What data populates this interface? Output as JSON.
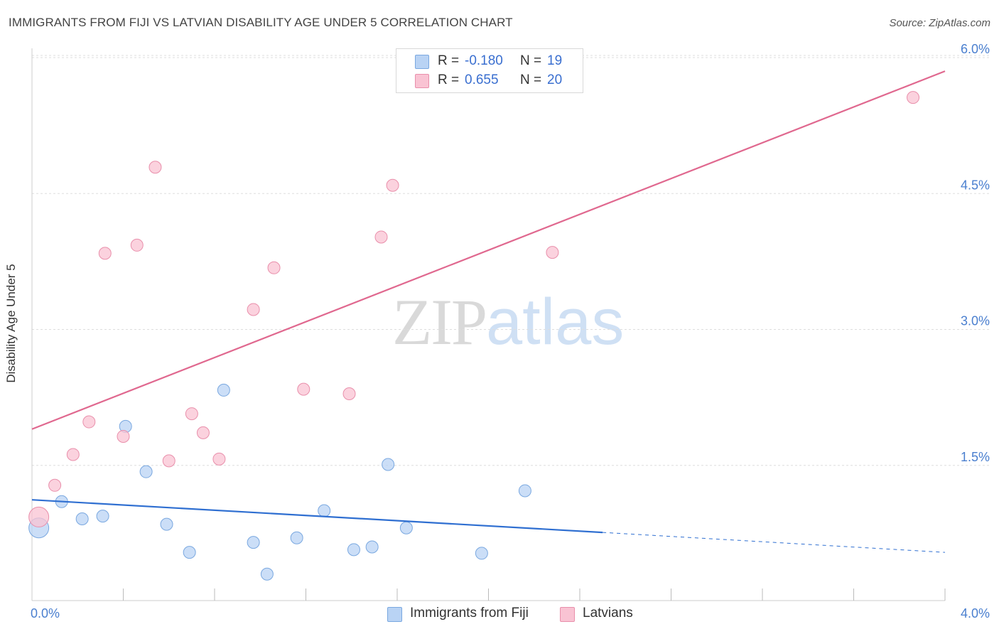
{
  "header": {
    "title": "IMMIGRANTS FROM FIJI VS LATVIAN DISABILITY AGE UNDER 5 CORRELATION CHART",
    "source": "Source: ZipAtlas.com"
  },
  "watermark": {
    "part1": "ZIP",
    "part2": "atlas"
  },
  "legend_top": {
    "rows": [
      {
        "r_label": "R =",
        "r_value": "-0.180",
        "n_label": "N =",
        "n_value": "19"
      },
      {
        "r_label": "R =",
        "r_value": "0.655",
        "n_label": "N =",
        "n_value": "20"
      }
    ]
  },
  "legend_bottom": {
    "items": [
      {
        "label": "Immigrants from Fiji"
      },
      {
        "label": "Latvians"
      }
    ]
  },
  "colors": {
    "fiji_fill": "#b9d3f4",
    "fiji_stroke": "#7aa8e0",
    "fiji_line": "#2f6fd1",
    "latvian_fill": "#f9c3d3",
    "latvian_stroke": "#e98fab",
    "latvian_line": "#e0688f",
    "grid": "#dddddd",
    "tick_label": "#4a7fcf"
  },
  "chart_data": {
    "type": "scatter",
    "title": "IMMIGRANTS FROM FIJI VS LATVIAN DISABILITY AGE UNDER 5 CORRELATION CHART",
    "xlabel": "",
    "ylabel": "Disability Age Under 5",
    "xlim": [
      0.0,
      4.0
    ],
    "ylim": [
      0.0,
      6.25
    ],
    "x_tick_labels": [
      {
        "value": 0.0,
        "label": "0.0%"
      },
      {
        "value": 4.0,
        "label": "4.0%"
      }
    ],
    "x_minor_ticks": [
      0.4,
      0.8,
      1.2,
      1.6,
      2.0,
      2.4,
      2.8,
      3.2,
      3.6,
      4.0
    ],
    "y_ticks": [
      {
        "value": 1.5,
        "label": "1.5%"
      },
      {
        "value": 3.0,
        "label": "3.0%"
      },
      {
        "value": 4.5,
        "label": "4.5%"
      },
      {
        "value": 6.0,
        "label": "6.0%"
      }
    ],
    "series": [
      {
        "name": "Immigrants from Fiji",
        "color_key": "fiji",
        "r": -0.18,
        "n": 19,
        "points": [
          {
            "x": 0.03,
            "y": 0.81,
            "big": true
          },
          {
            "x": 0.13,
            "y": 1.1
          },
          {
            "x": 0.22,
            "y": 0.91
          },
          {
            "x": 0.31,
            "y": 0.94
          },
          {
            "x": 0.41,
            "y": 1.93
          },
          {
            "x": 0.5,
            "y": 1.43
          },
          {
            "x": 0.59,
            "y": 0.85
          },
          {
            "x": 0.69,
            "y": 0.54
          },
          {
            "x": 0.84,
            "y": 2.33
          },
          {
            "x": 0.97,
            "y": 0.65
          },
          {
            "x": 1.03,
            "y": 0.3
          },
          {
            "x": 1.16,
            "y": 0.7
          },
          {
            "x": 1.28,
            "y": 1.0
          },
          {
            "x": 1.41,
            "y": 0.57
          },
          {
            "x": 1.49,
            "y": 0.6
          },
          {
            "x": 1.56,
            "y": 1.51
          },
          {
            "x": 1.64,
            "y": 0.81
          },
          {
            "x": 1.97,
            "y": 0.53
          },
          {
            "x": 2.16,
            "y": 1.22
          }
        ],
        "trend": {
          "x0": 0.0,
          "y0": 1.12,
          "x1": 2.5,
          "y1": 0.76,
          "dash_to_x": 4.0,
          "dash_to_y": 0.54
        }
      },
      {
        "name": "Latvians",
        "color_key": "latvian",
        "r": 0.655,
        "n": 20,
        "points": [
          {
            "x": 0.03,
            "y": 0.93,
            "big": true
          },
          {
            "x": 0.1,
            "y": 1.28
          },
          {
            "x": 0.18,
            "y": 1.62
          },
          {
            "x": 0.25,
            "y": 1.98
          },
          {
            "x": 0.32,
            "y": 3.84
          },
          {
            "x": 0.4,
            "y": 1.82
          },
          {
            "x": 0.46,
            "y": 3.93
          },
          {
            "x": 0.54,
            "y": 4.79
          },
          {
            "x": 0.6,
            "y": 1.55
          },
          {
            "x": 0.7,
            "y": 2.07
          },
          {
            "x": 0.75,
            "y": 1.86
          },
          {
            "x": 0.82,
            "y": 1.57
          },
          {
            "x": 0.97,
            "y": 3.22
          },
          {
            "x": 1.06,
            "y": 3.68
          },
          {
            "x": 1.19,
            "y": 2.34
          },
          {
            "x": 1.39,
            "y": 2.29
          },
          {
            "x": 1.53,
            "y": 4.02
          },
          {
            "x": 1.58,
            "y": 4.59
          },
          {
            "x": 2.28,
            "y": 3.85
          },
          {
            "x": 3.86,
            "y": 5.56
          }
        ],
        "trend": {
          "x0": 0.0,
          "y0": 1.9,
          "x1": 4.0,
          "y1": 5.85
        }
      }
    ]
  }
}
